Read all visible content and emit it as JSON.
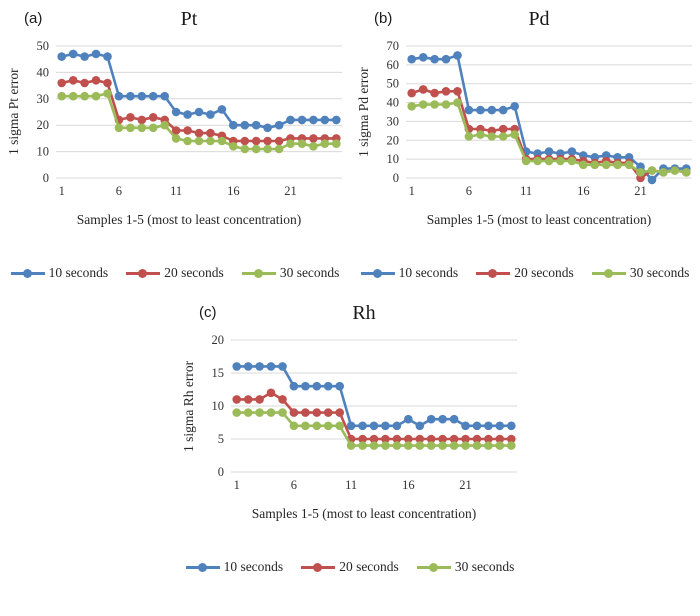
{
  "x_axis_title": "Samples 1-5 (most to least concentration)",
  "chart_data": [
    {
      "type": "line",
      "panel": "(a)",
      "title": "Pt",
      "ylabel": "1 sigma Pt error",
      "xlabel": "Samples 1-5 (most to least concentration)",
      "ylim": [
        0,
        50
      ],
      "ystep": 10,
      "xticks": [
        1,
        6,
        11,
        16,
        21
      ],
      "n_points": 25,
      "grid": "horizontal",
      "legend_position": "bottom",
      "series": [
        {
          "name": "10 seconds",
          "color": "#4F81BD",
          "values": [
            46,
            47,
            46,
            47,
            46,
            31,
            31,
            31,
            31,
            31,
            25,
            24,
            25,
            24,
            26,
            20,
            20,
            20,
            19,
            20,
            22,
            22,
            22,
            22,
            22
          ]
        },
        {
          "name": "20 seconds",
          "color": "#C0504D",
          "values": [
            36,
            37,
            36,
            37,
            36,
            22,
            23,
            22,
            23,
            22,
            18,
            18,
            17,
            17,
            16,
            14,
            14,
            14,
            14,
            14,
            15,
            15,
            15,
            15,
            15
          ]
        },
        {
          "name": "30 seconds",
          "color": "#9BBB59",
          "values": [
            31,
            31,
            31,
            31,
            32,
            19,
            19,
            19,
            19,
            20,
            15,
            14,
            14,
            14,
            14,
            12,
            11,
            11,
            11,
            11,
            13,
            13,
            12,
            13,
            13
          ]
        }
      ]
    },
    {
      "type": "line",
      "panel": "(b)",
      "title": "Pd",
      "ylabel": "1 sigma Pd error",
      "xlabel": "Samples 1-5 (most to least concentration)",
      "ylim": [
        0,
        70
      ],
      "ystep": 10,
      "xticks": [
        1,
        6,
        11,
        16,
        21
      ],
      "n_points": 25,
      "grid": "horizontal",
      "legend_position": "bottom",
      "series": [
        {
          "name": "10 seconds",
          "color": "#4F81BD",
          "values": [
            63,
            64,
            63,
            63,
            65,
            36,
            36,
            36,
            36,
            38,
            14,
            13,
            14,
            13,
            14,
            12,
            11,
            12,
            11,
            11,
            6,
            -1,
            5,
            5,
            5
          ]
        },
        {
          "name": "20 seconds",
          "color": "#C0504D",
          "values": [
            45,
            47,
            45,
            46,
            46,
            26,
            26,
            25,
            26,
            26,
            10,
            10,
            10,
            10,
            10,
            9,
            8,
            9,
            8,
            8,
            0,
            4,
            3,
            4,
            3
          ]
        },
        {
          "name": "30 seconds",
          "color": "#9BBB59",
          "values": [
            38,
            39,
            39,
            39,
            40,
            22,
            23,
            22,
            22,
            23,
            9,
            9,
            9,
            9,
            9,
            7,
            7,
            7,
            7,
            7,
            3,
            4,
            3,
            4,
            3
          ]
        }
      ]
    },
    {
      "type": "line",
      "panel": "(c)",
      "title": "Rh",
      "ylabel": "1 sigma Rh error",
      "xlabel": "Samples 1-5 (most to least concentration)",
      "ylim": [
        0,
        20
      ],
      "ystep": 5,
      "xticks": [
        1,
        6,
        11,
        16,
        21
      ],
      "n_points": 25,
      "grid": "horizontal",
      "legend_position": "bottom",
      "series": [
        {
          "name": "10 seconds",
          "color": "#4F81BD",
          "values": [
            16,
            16,
            16,
            16,
            16,
            13,
            13,
            13,
            13,
            13,
            7,
            7,
            7,
            7,
            7,
            8,
            7,
            8,
            8,
            8,
            7,
            7,
            7,
            7,
            7
          ]
        },
        {
          "name": "20 seconds",
          "color": "#C0504D",
          "values": [
            11,
            11,
            11,
            12,
            11,
            9,
            9,
            9,
            9,
            9,
            5,
            5,
            5,
            5,
            5,
            5,
            5,
            5,
            5,
            5,
            5,
            5,
            5,
            5,
            5
          ]
        },
        {
          "name": "30 seconds",
          "color": "#9BBB59",
          "values": [
            9,
            9,
            9,
            9,
            9,
            7,
            7,
            7,
            7,
            7,
            4,
            4,
            4,
            4,
            4,
            4,
            4,
            4,
            4,
            4,
            4,
            4,
            4,
            4,
            4
          ]
        }
      ]
    }
  ],
  "colors": {
    "series_blue": "#4F81BD",
    "series_red": "#C0504D",
    "series_green": "#9BBB59",
    "gridline": "#D9D9D9"
  }
}
